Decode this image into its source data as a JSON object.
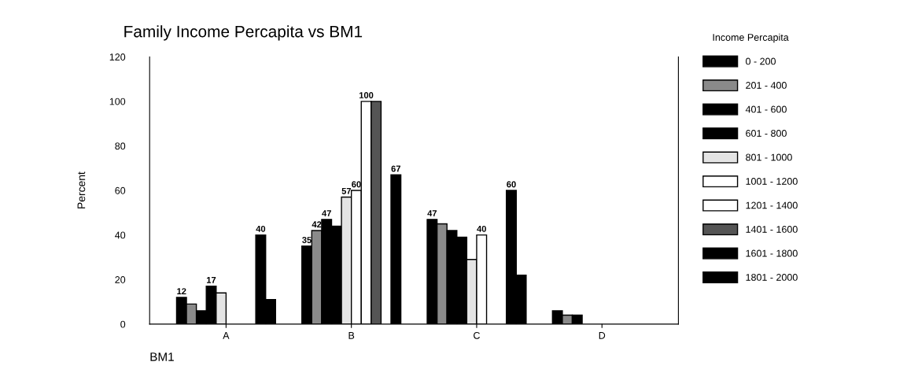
{
  "chart_data": {
    "type": "bar",
    "title": "Family Income Percapita vs BM1",
    "xlabel": "BM1",
    "ylabel": "Percent",
    "legend_title": "Income Percapita",
    "categories": [
      "A",
      "B",
      "C",
      "D"
    ],
    "series": [
      {
        "name": "0 - 200",
        "color": "#000000",
        "values": [
          12,
          35,
          47,
          6
        ],
        "value_labels": [
          "12",
          "35",
          "47",
          null
        ]
      },
      {
        "name": "201 - 400",
        "color": "#8a8a8a",
        "values": [
          9,
          42,
          45,
          4
        ],
        "value_labels": [
          null,
          "42",
          null,
          null
        ]
      },
      {
        "name": "401 - 600",
        "color": "#000000",
        "values": [
          6,
          47,
          42,
          4
        ],
        "value_labels": [
          null,
          "47",
          null,
          null
        ]
      },
      {
        "name": "601 - 800",
        "color": "#000000",
        "values": [
          17,
          44,
          39,
          0
        ],
        "value_labels": [
          "17",
          null,
          null,
          null
        ]
      },
      {
        "name": "801 - 1000",
        "color": "#e4e4e4",
        "values": [
          14,
          57,
          29,
          0
        ],
        "value_labels": [
          null,
          "57",
          null,
          null
        ]
      },
      {
        "name": "1001 - 1200",
        "color": "#ffffff",
        "values": [
          0,
          60,
          40,
          0
        ],
        "value_labels": [
          null,
          "60",
          "40",
          null
        ]
      },
      {
        "name": "1201 - 1400",
        "color": "#ffffff",
        "values": [
          0,
          100,
          0,
          0
        ],
        "value_labels": [
          null,
          "100",
          null,
          null
        ]
      },
      {
        "name": "1401 - 1600",
        "color": "#555555",
        "values": [
          0,
          100,
          0,
          0
        ],
        "value_labels": [
          null,
          null,
          null,
          null
        ]
      },
      {
        "name": "1601 - 1800",
        "color": "#000000",
        "values": [
          40,
          0,
          60,
          0
        ],
        "value_labels": [
          "40",
          null,
          "60",
          null
        ]
      },
      {
        "name": "1801 - 2000",
        "color": "#000000",
        "values": [
          11,
          67,
          22,
          0
        ],
        "value_labels": [
          null,
          "67",
          null,
          null
        ]
      }
    ],
    "ylim": [
      0,
      120
    ],
    "yticks": [
      0,
      20,
      40,
      60,
      80,
      100,
      120
    ],
    "grid": false,
    "legend": "right"
  }
}
